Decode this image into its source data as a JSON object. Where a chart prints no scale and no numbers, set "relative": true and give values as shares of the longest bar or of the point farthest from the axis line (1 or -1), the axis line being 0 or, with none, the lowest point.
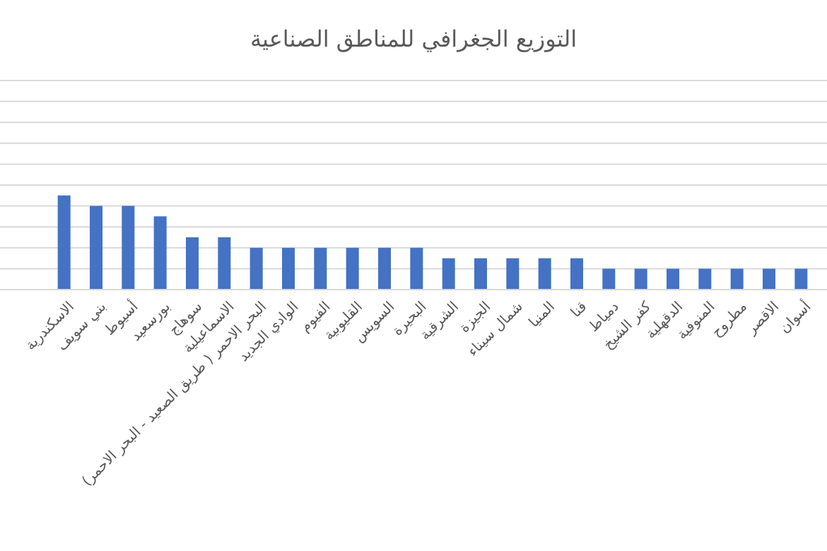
{
  "chart_data": {
    "type": "bar",
    "title": "التوزيع الجغرافي للمناطق الصناعية",
    "relative": true,
    "grid": "y",
    "color": "#4472c4",
    "categories": [
      "الاسكندرية",
      "بني سويف",
      "أسيوط",
      "بورسعيد",
      "سوهاج",
      "الاسماعيلية",
      "البحر الاحمر ( طريق الصعيد - البحر الاحمر)",
      "الوادي الجديد",
      "الفيوم",
      "القليوبية",
      "السويس",
      "البحيرة",
      "الشرقية",
      "الجيزة",
      "شمال سيناء",
      "المنيا",
      "قنا",
      "دمياط",
      "كفر الشيخ",
      "الدقهلية",
      "المنوفية",
      "مطروح",
      "الاقصر",
      "أسوان"
    ],
    "values": [
      1,
      0.889,
      0.889,
      0.778,
      0.556,
      0.556,
      0.444,
      0.444,
      0.444,
      0.444,
      0.444,
      0.444,
      0.333,
      0.333,
      0.333,
      0.333,
      0.333,
      0.222,
      0.222,
      0.222,
      0.222,
      0.222,
      0.222,
      0.222
    ]
  }
}
